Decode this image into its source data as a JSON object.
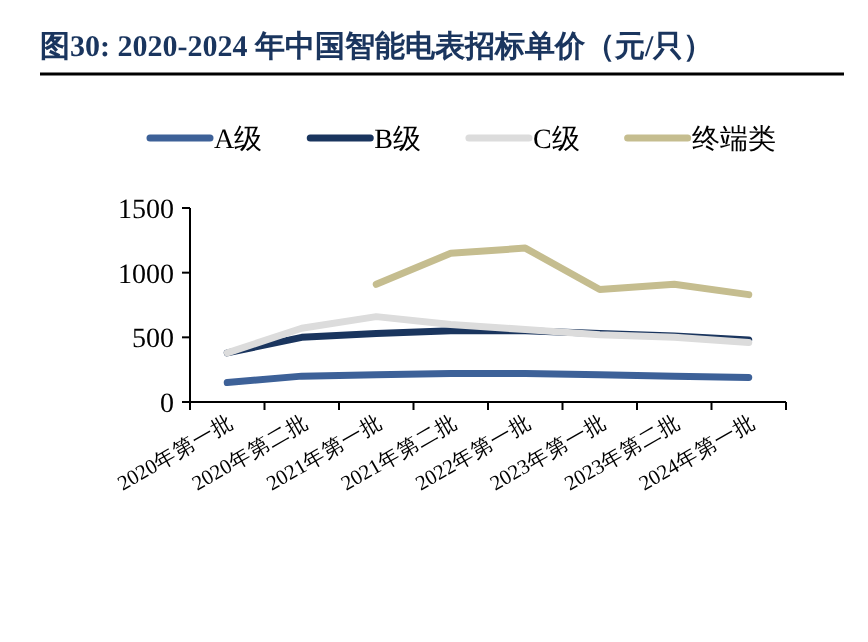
{
  "chart_data": {
    "type": "line",
    "title": "图30:  2020-2024 年中国智能电表招标单价（元/只）",
    "categories": [
      "2020年第一批",
      "2020年第二批",
      "2021年第一批",
      "2021年第二批",
      "2022年第一批",
      "2023年第一批",
      "2023年第二批",
      "2024年第一批"
    ],
    "series": [
      {
        "name": "A级",
        "color": "#3d6198",
        "values": [
          150,
          200,
          210,
          220,
          220,
          210,
          200,
          190
        ]
      },
      {
        "name": "B级",
        "color": "#1a355e",
        "values": [
          380,
          500,
          530,
          550,
          550,
          530,
          510,
          480
        ]
      },
      {
        "name": "C级",
        "color": "#dcdcdc",
        "values": [
          380,
          570,
          660,
          600,
          560,
          520,
          500,
          460
        ]
      },
      {
        "name": "终端类",
        "color": "#c5bd8f",
        "values": [
          null,
          null,
          910,
          1150,
          1190,
          870,
          910,
          830
        ]
      }
    ],
    "ylim": [
      0,
      1500
    ],
    "yticks": [
      0,
      500,
      1000,
      1500
    ],
    "grid": false,
    "legend": "top",
    "marker": "none",
    "line_style": "solid"
  }
}
